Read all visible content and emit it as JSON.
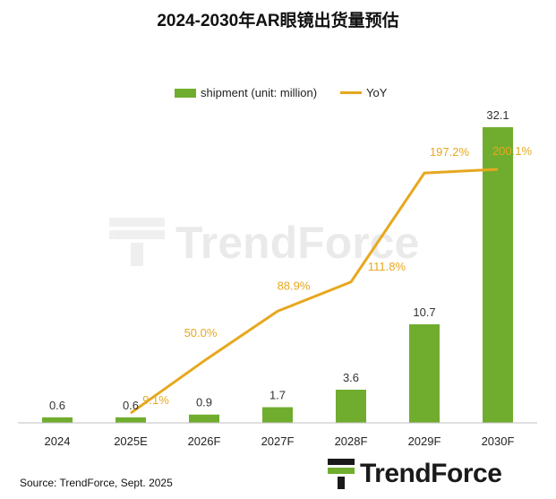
{
  "title": "2024-2030年AR眼镜出货量预估",
  "legend": {
    "bar_label": "shipment (unit: million)",
    "line_label": "YoY"
  },
  "source": "Source: TrendForce, Sept. 2025",
  "watermark": "TrendForce",
  "logo_text": "TrendForce",
  "colors": {
    "bar": "#70ad2e",
    "line": "#e6a81e",
    "axis": "#bfbfbf"
  },
  "chart_data": {
    "type": "bar",
    "categories": [
      "2024",
      "2025E",
      "2026F",
      "2027F",
      "2028F",
      "2029F",
      "2030F"
    ],
    "series": [
      {
        "name": "shipment (unit: million)",
        "type": "bar",
        "values": [
          0.6,
          0.6,
          0.9,
          1.7,
          3.6,
          10.7,
          32.1
        ],
        "labels": [
          "0.6",
          "0.6",
          "0.9",
          "1.7",
          "3.6",
          "10.7",
          "32.1"
        ]
      },
      {
        "name": "YoY",
        "type": "line",
        "values": [
          null,
          9.1,
          50.0,
          88.9,
          111.8,
          197.2,
          200.1
        ],
        "labels": [
          null,
          "9.1%",
          "50.0%",
          "88.9%",
          "111.8%",
          "197.2%",
          "200.1%"
        ]
      }
    ],
    "ylim": [
      0,
      32.1
    ],
    "y2lim": [
      0,
      250
    ],
    "legend_position": "top"
  }
}
